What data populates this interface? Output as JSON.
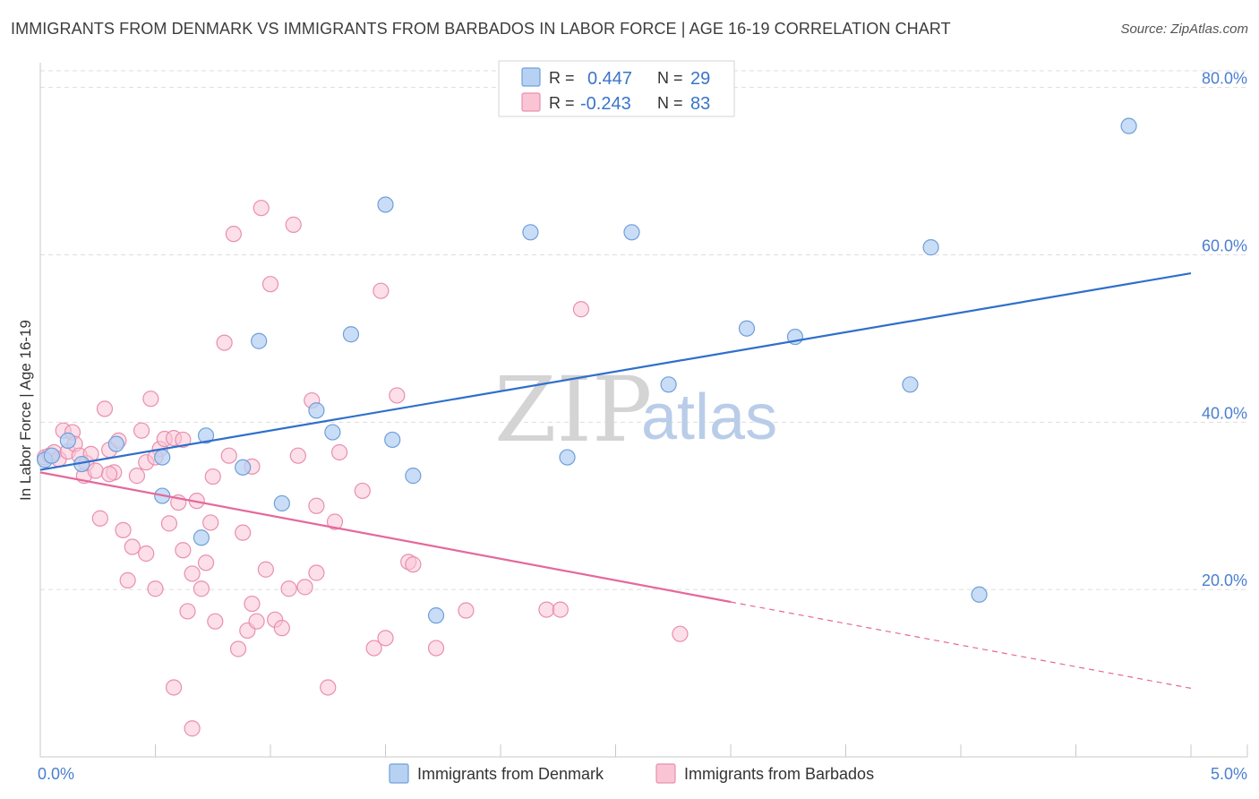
{
  "header": {
    "title": "IMMIGRANTS FROM DENMARK VS IMMIGRANTS FROM BARBADOS IN LABOR FORCE | AGE 16-19 CORRELATION CHART",
    "source": "Source: ZipAtlas.com"
  },
  "watermark": {
    "zip": "ZIP",
    "atlas": "atlas"
  },
  "legend": {
    "r_label": "R =",
    "n_label": "N =",
    "rows": [
      {
        "r": "0.447",
        "n": "29"
      },
      {
        "r": "-0.243",
        "n": "83"
      }
    ]
  },
  "colors": {
    "denmark_fill": "#b7d1f3",
    "denmark_stroke": "#6f9fd9",
    "denmark_line": "#2f6fcb",
    "barbados_fill": "#f9c5d5",
    "barbados_stroke": "#e98fae",
    "barbados_line": "#e5689a",
    "grid": "#dddddd",
    "axis_text": "#4a7fcf"
  },
  "chart_data": {
    "type": "scatter",
    "title": "IMMIGRANTS FROM DENMARK VS IMMIGRANTS FROM BARBADOS IN LABOR FORCE | AGE 16-19 CORRELATION CHART",
    "xlabel": "",
    "ylabel": "In Labor Force | Age 16-19",
    "xlim": [
      0,
      5
    ],
    "ylim": [
      0,
      82
    ],
    "x_tick_labels": [
      "0.0%",
      "5.0%"
    ],
    "y_ticks": [
      20,
      40,
      60,
      80
    ],
    "y_tick_labels": [
      "20.0%",
      "40.0%",
      "60.0%",
      "80.0%"
    ],
    "grid": true,
    "legend_position": "top-center",
    "series": [
      {
        "name": "Immigrants from Denmark",
        "r": 0.447,
        "n": 29,
        "trend": {
          "x0": 0,
          "y0": 34.3,
          "x1": 5,
          "y1": 57.8,
          "dashed_from": null
        },
        "points": [
          [
            0.02,
            35.5
          ],
          [
            0.05,
            36.0
          ],
          [
            0.12,
            37.8
          ],
          [
            0.18,
            35.0
          ],
          [
            0.33,
            37.4
          ],
          [
            0.53,
            35.8
          ],
          [
            0.72,
            38.4
          ],
          [
            0.88,
            34.6
          ],
          [
            1.05,
            30.3
          ],
          [
            1.2,
            41.4
          ],
          [
            1.27,
            38.8
          ],
          [
            1.5,
            66.0
          ],
          [
            1.53,
            37.9
          ],
          [
            1.62,
            33.6
          ],
          [
            1.72,
            16.9
          ],
          [
            2.13,
            62.7
          ],
          [
            2.29,
            35.8
          ],
          [
            2.57,
            62.7
          ],
          [
            2.73,
            44.5
          ],
          [
            3.07,
            51.2
          ],
          [
            3.28,
            50.2
          ],
          [
            3.78,
            44.5
          ],
          [
            3.87,
            60.9
          ],
          [
            4.08,
            19.4
          ],
          [
            4.73,
            75.4
          ],
          [
            0.53,
            31.2
          ],
          [
            0.7,
            26.2
          ],
          [
            0.95,
            49.7
          ],
          [
            1.35,
            50.5
          ]
        ]
      },
      {
        "name": "Immigrants from Barbados",
        "r": -0.243,
        "n": 83,
        "trend": {
          "x0": 0,
          "y0": 34.0,
          "x1": 5,
          "y1": 8.2,
          "dashed_from": 3.0
        },
        "points": [
          [
            0.02,
            35.8
          ],
          [
            0.04,
            36.0
          ],
          [
            0.06,
            36.4
          ],
          [
            0.08,
            35.6
          ],
          [
            0.1,
            39.0
          ],
          [
            0.12,
            36.5
          ],
          [
            0.14,
            38.8
          ],
          [
            0.15,
            37.4
          ],
          [
            0.17,
            36.0
          ],
          [
            0.19,
            33.6
          ],
          [
            0.2,
            35.1
          ],
          [
            0.22,
            36.2
          ],
          [
            0.24,
            34.2
          ],
          [
            0.26,
            28.5
          ],
          [
            0.28,
            41.6
          ],
          [
            0.3,
            36.7
          ],
          [
            0.32,
            34.0
          ],
          [
            0.34,
            37.8
          ],
          [
            0.36,
            27.1
          ],
          [
            0.38,
            21.1
          ],
          [
            0.4,
            25.1
          ],
          [
            0.42,
            33.6
          ],
          [
            0.44,
            39.0
          ],
          [
            0.46,
            35.2
          ],
          [
            0.48,
            42.8
          ],
          [
            0.5,
            20.1
          ],
          [
            0.52,
            36.8
          ],
          [
            0.54,
            38.0
          ],
          [
            0.56,
            27.9
          ],
          [
            0.58,
            8.3
          ],
          [
            0.6,
            30.4
          ],
          [
            0.62,
            24.7
          ],
          [
            0.64,
            17.4
          ],
          [
            0.66,
            3.4
          ],
          [
            0.68,
            30.6
          ],
          [
            0.7,
            20.1
          ],
          [
            0.72,
            23.2
          ],
          [
            0.74,
            28.0
          ],
          [
            0.76,
            16.2
          ],
          [
            0.8,
            49.5
          ],
          [
            0.82,
            36.0
          ],
          [
            0.84,
            62.5
          ],
          [
            0.86,
            12.9
          ],
          [
            0.88,
            26.8
          ],
          [
            0.9,
            15.1
          ],
          [
            0.92,
            18.3
          ],
          [
            0.94,
            16.2
          ],
          [
            0.96,
            65.6
          ],
          [
            0.98,
            22.4
          ],
          [
            1.0,
            56.5
          ],
          [
            1.02,
            16.4
          ],
          [
            1.05,
            15.4
          ],
          [
            1.08,
            20.1
          ],
          [
            1.1,
            63.6
          ],
          [
            1.12,
            36.0
          ],
          [
            1.15,
            20.3
          ],
          [
            1.18,
            42.6
          ],
          [
            1.2,
            22.0
          ],
          [
            1.25,
            8.3
          ],
          [
            1.28,
            28.1
          ],
          [
            1.3,
            36.4
          ],
          [
            1.45,
            13.0
          ],
          [
            1.48,
            55.7
          ],
          [
            1.5,
            14.2
          ],
          [
            1.55,
            43.2
          ],
          [
            1.6,
            23.3
          ],
          [
            1.62,
            23.0
          ],
          [
            1.72,
            13.0
          ],
          [
            1.85,
            17.5
          ],
          [
            2.2,
            17.6
          ],
          [
            2.26,
            17.6
          ],
          [
            2.35,
            53.5
          ],
          [
            2.78,
            14.7
          ],
          [
            0.46,
            24.3
          ],
          [
            0.5,
            35.8
          ],
          [
            0.58,
            38.1
          ],
          [
            0.66,
            21.9
          ],
          [
            0.75,
            33.5
          ],
          [
            0.92,
            34.7
          ],
          [
            1.2,
            30.0
          ],
          [
            1.4,
            31.8
          ],
          [
            0.62,
            37.9
          ],
          [
            0.3,
            33.8
          ]
        ]
      }
    ]
  }
}
